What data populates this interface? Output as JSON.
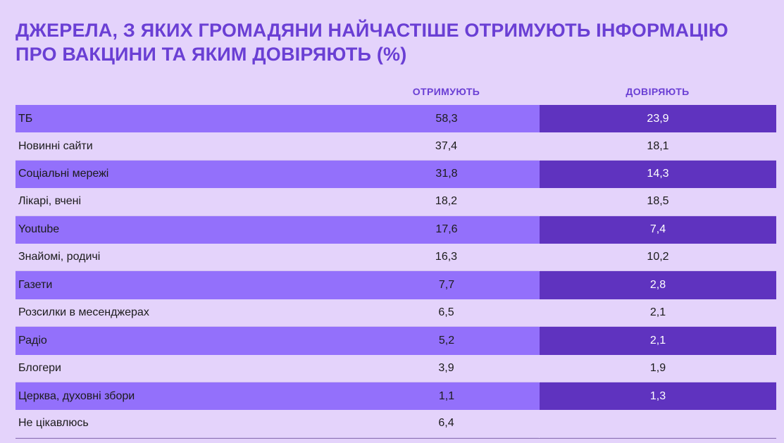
{
  "chart_data": {
    "type": "table",
    "title_lines": [
      "ДЖЕРЕЛА, З ЯКИХ ГРОМАДЯНИ НАЙЧАСТІШЕ ОТРИМУЮТЬ ІНФОРМАЦІЮ",
      "ПРО ВАКЦИНИ ТА ЯКИМ ДОВІРЯЮТЬ (%)"
    ],
    "columns": [
      "ОТРИМУЮТЬ",
      "ДОВІРЯЮТЬ"
    ],
    "rows": [
      {
        "label": "ТБ",
        "receive": "58,3",
        "trust": "23,9"
      },
      {
        "label": "Новинні сайти",
        "receive": "37,4",
        "trust": "18,1"
      },
      {
        "label": "Соціальні мережі",
        "receive": "31,8",
        "trust": "14,3"
      },
      {
        "label": "Лікарі, вчені",
        "receive": "18,2",
        "trust": "18,5"
      },
      {
        "label": "Youtube",
        "receive": "17,6",
        "trust": "7,4"
      },
      {
        "label": "Знайомі, родичі",
        "receive": "16,3",
        "trust": "10,2"
      },
      {
        "label": "Газети",
        "receive": "7,7",
        "trust": "2,8"
      },
      {
        "label": "Розсилки в месенджерах",
        "receive": "6,5",
        "trust": "2,1"
      },
      {
        "label": "Радіо",
        "receive": "5,2",
        "trust": "2,1"
      },
      {
        "label": "Блогери",
        "receive": "3,9",
        "trust": "1,9"
      },
      {
        "label": "Церква, духовні збори",
        "receive": "1,1",
        "trust": "1,3"
      },
      {
        "label": "Не цікавлюсь",
        "receive": "6,4",
        "trust": ""
      }
    ],
    "colors": {
      "background": "#e4d3fb",
      "title": "#6a3fd4",
      "row_highlight": "#9370fb",
      "trust_highlight": "#5f33bf"
    }
  }
}
